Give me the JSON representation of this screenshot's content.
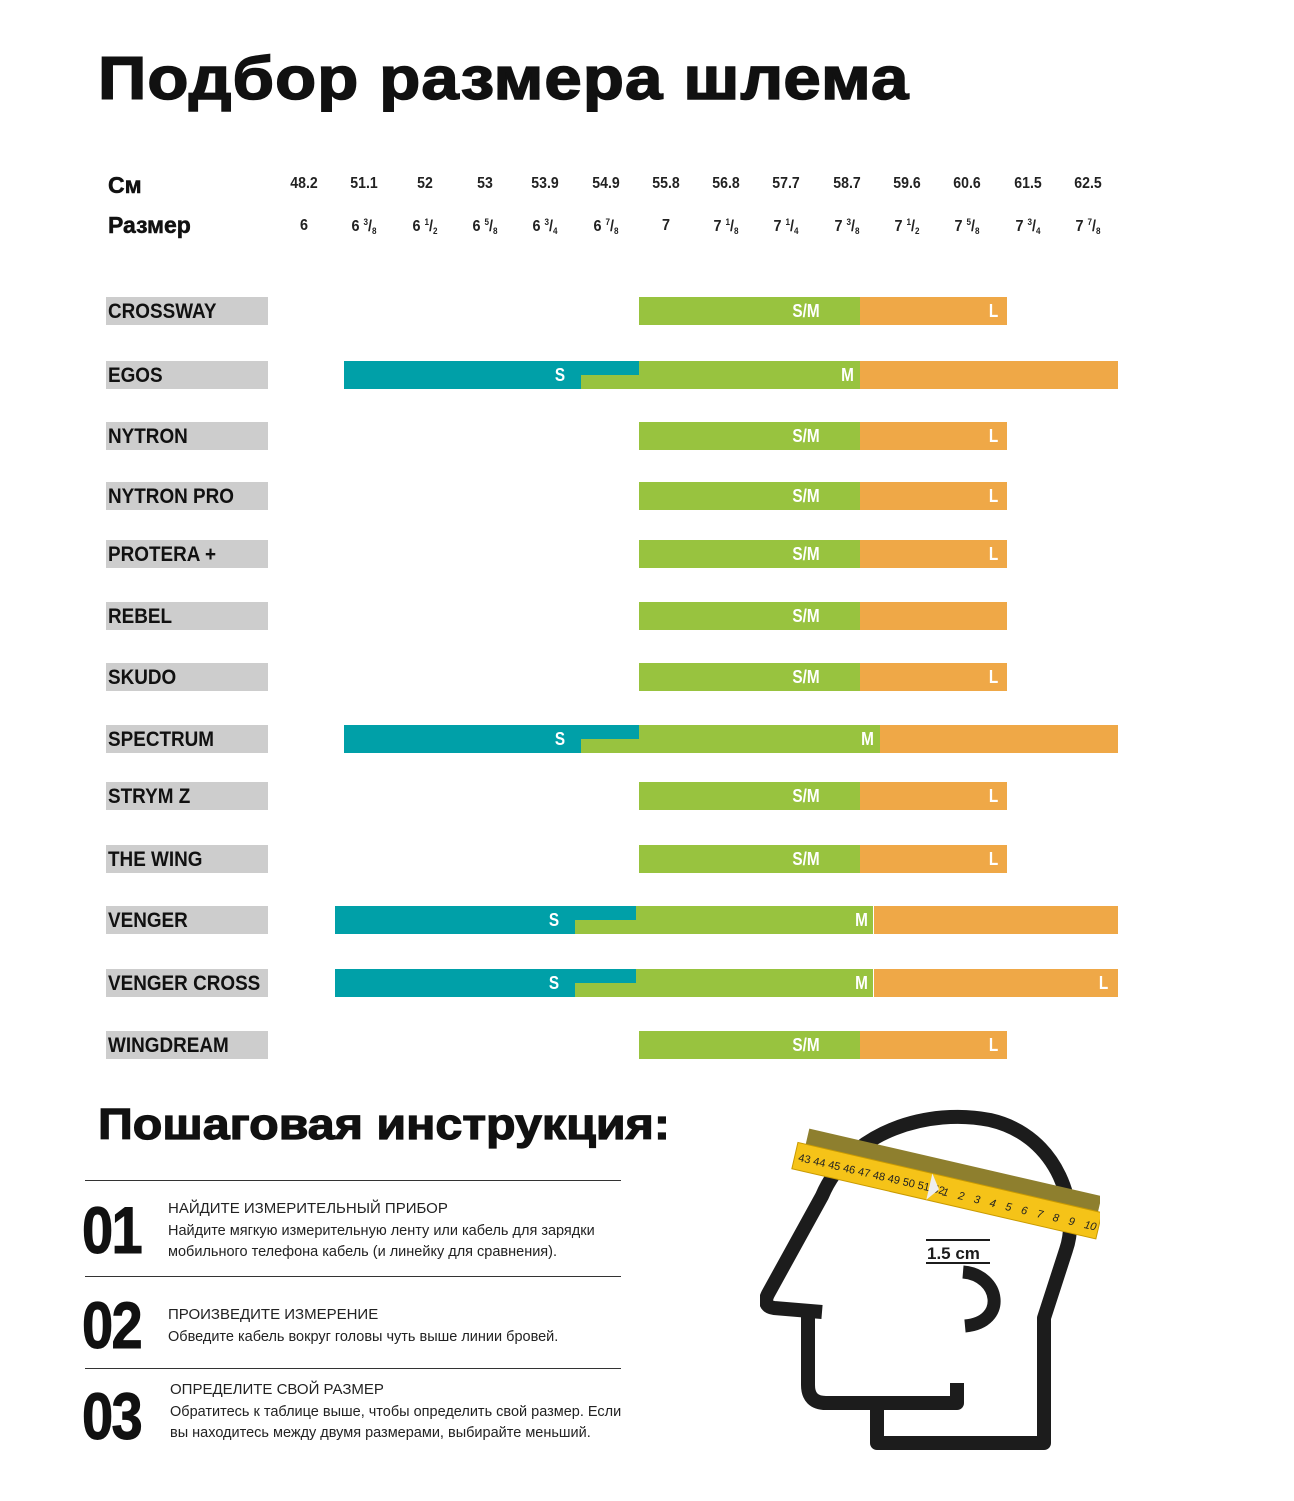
{
  "title": "Подбор размера шлема",
  "header": {
    "cm_label": "См",
    "size_label": "Размер"
  },
  "colors": {
    "S": "#00a0a8",
    "SM": "#98c33f",
    "M": "#98c33f",
    "L": "#efa847",
    "brand_bg": "#cdcdcd"
  },
  "chart_data": {
    "type": "bar",
    "title": "Подбор размера шлема",
    "x_axis": {
      "cm": [
        "48.2",
        "51.1",
        "52",
        "53",
        "53.9",
        "54.9",
        "55.8",
        "56.8",
        "57.7",
        "58.7",
        "59.6",
        "60.6",
        "61.5",
        "62.5"
      ],
      "size": [
        {
          "whole": "6",
          "num": "",
          "den": ""
        },
        {
          "whole": "6",
          "num": "3",
          "den": "8"
        },
        {
          "whole": "6",
          "num": "1",
          "den": "2"
        },
        {
          "whole": "6",
          "num": "5",
          "den": "8"
        },
        {
          "whole": "6",
          "num": "3",
          "den": "4"
        },
        {
          "whole": "6",
          "num": "7",
          "den": "8"
        },
        {
          "whole": "7",
          "num": "",
          "den": ""
        },
        {
          "whole": "7",
          "num": "1",
          "den": "8"
        },
        {
          "whole": "7",
          "num": "1",
          "den": "4"
        },
        {
          "whole": "7",
          "num": "3",
          "den": "8"
        },
        {
          "whole": "7",
          "num": "1",
          "den": "2"
        },
        {
          "whole": "7",
          "num": "5",
          "den": "8"
        },
        {
          "whole": "7",
          "num": "3",
          "den": "4"
        },
        {
          "whole": "7",
          "num": "7",
          "den": "8"
        }
      ]
    },
    "units": "cm",
    "models": [
      {
        "name": "CROSSWAY",
        "segments": [
          {
            "size": "SM",
            "label": "S/M",
            "from": 55.4,
            "to": 58.9
          },
          {
            "size": "L",
            "label": "L",
            "from": 58.9,
            "to": 61.2
          }
        ]
      },
      {
        "name": "EGOS",
        "segments": [
          {
            "size": "S",
            "label": "S",
            "from": 50.1,
            "to": 55.4,
            "overlap_from": 54.5
          },
          {
            "size": "M",
            "label": "M",
            "from": 54.5,
            "to": 58.9
          },
          {
            "size": "L",
            "label": "",
            "from": 58.9,
            "to": 63.0
          }
        ]
      },
      {
        "name": "NYTRON",
        "segments": [
          {
            "size": "SM",
            "label": "S/M",
            "from": 55.4,
            "to": 58.9
          },
          {
            "size": "L",
            "label": "L",
            "from": 58.9,
            "to": 61.2
          }
        ]
      },
      {
        "name": "NYTRON PRO",
        "segments": [
          {
            "size": "SM",
            "label": "S/M",
            "from": 55.4,
            "to": 58.9
          },
          {
            "size": "L",
            "label": "L",
            "from": 58.9,
            "to": 61.2
          }
        ]
      },
      {
        "name": "PROTERA +",
        "segments": [
          {
            "size": "SM",
            "label": "S/M",
            "from": 55.4,
            "to": 58.9
          },
          {
            "size": "L",
            "label": "L",
            "from": 58.9,
            "to": 61.2
          }
        ]
      },
      {
        "name": "REBEL",
        "segments": [
          {
            "size": "SM",
            "label": "S/M",
            "from": 55.4,
            "to": 58.9
          },
          {
            "size": "L",
            "label": "",
            "from": 58.9,
            "to": 61.2
          }
        ]
      },
      {
        "name": "SKUDO",
        "segments": [
          {
            "size": "SM",
            "label": "S/M",
            "from": 55.4,
            "to": 58.9
          },
          {
            "size": "L",
            "label": "L",
            "from": 58.9,
            "to": 61.2
          }
        ]
      },
      {
        "name": "SPECTRUM",
        "segments": [
          {
            "size": "S",
            "label": "S",
            "from": 50.1,
            "to": 55.4,
            "overlap_from": 54.5
          },
          {
            "size": "M",
            "label": "M",
            "from": 54.5,
            "to": 59.2
          },
          {
            "size": "L",
            "label": "",
            "from": 59.2,
            "to": 63.0
          }
        ]
      },
      {
        "name": "STRYM Z",
        "segments": [
          {
            "size": "SM",
            "label": "S/M",
            "from": 55.4,
            "to": 58.9
          },
          {
            "size": "L",
            "label": "L",
            "from": 58.9,
            "to": 61.2
          }
        ]
      },
      {
        "name": "THE WING",
        "segments": [
          {
            "size": "SM",
            "label": "S/M",
            "from": 55.4,
            "to": 58.9
          },
          {
            "size": "L",
            "label": "L",
            "from": 58.9,
            "to": 61.2
          }
        ]
      },
      {
        "name": "VENGER",
        "segments": [
          {
            "size": "S",
            "label": "S",
            "from": 49.7,
            "to": 55.35,
            "overlap_from": 54.4
          },
          {
            "size": "M",
            "label": "M",
            "from": 54.4,
            "to": 59.1
          },
          {
            "size": "L",
            "label": "",
            "from": 59.1,
            "to": 63.0
          }
        ]
      },
      {
        "name": "VENGER CROSS",
        "segments": [
          {
            "size": "S",
            "label": "S",
            "from": 49.7,
            "to": 55.35,
            "overlap_from": 54.4
          },
          {
            "size": "M",
            "label": "M",
            "from": 54.4,
            "to": 59.1
          },
          {
            "size": "L",
            "label": "L",
            "from": 59.1,
            "to": 63.0
          }
        ]
      },
      {
        "name": "WINGDREAM",
        "segments": [
          {
            "size": "SM",
            "label": "S/M",
            "from": 55.4,
            "to": 58.9
          },
          {
            "size": "L",
            "label": "L",
            "from": 58.9,
            "to": 61.2
          }
        ]
      }
    ]
  },
  "instructions": {
    "title": "Пошаговая инструкция:",
    "steps": [
      {
        "num": "01",
        "heading": "НАЙДИТЕ ИЗМЕРИТЕЛЬНЫЙ ПРИБОР",
        "body": "Найдите мягкую измерительную ленту или кабель для зарядки мобильного телефона кабель (и линейку для сравнения)."
      },
      {
        "num": "02",
        "heading": "ПРОИЗВЕДИТЕ ИЗМЕРЕНИЕ",
        "body": "Обведите кабель вокруг головы чуть выше линии бровей."
      },
      {
        "num": "03",
        "heading": "ОПРЕДЕЛИТЕ СВОЙ РАЗМЕР",
        "body": "Обратитесь к таблице выше, чтобы определить свой размер. Если вы находитесь между двумя размерами, выбирайте меньший."
      }
    ]
  },
  "illustration": {
    "tape_numbers_left": "43 44 45 46 47 48 49 50 51 52",
    "tape_numbers_right": "1 2 3 4 5 6 7 8 9 10",
    "offset_label": "1.5 cm"
  }
}
